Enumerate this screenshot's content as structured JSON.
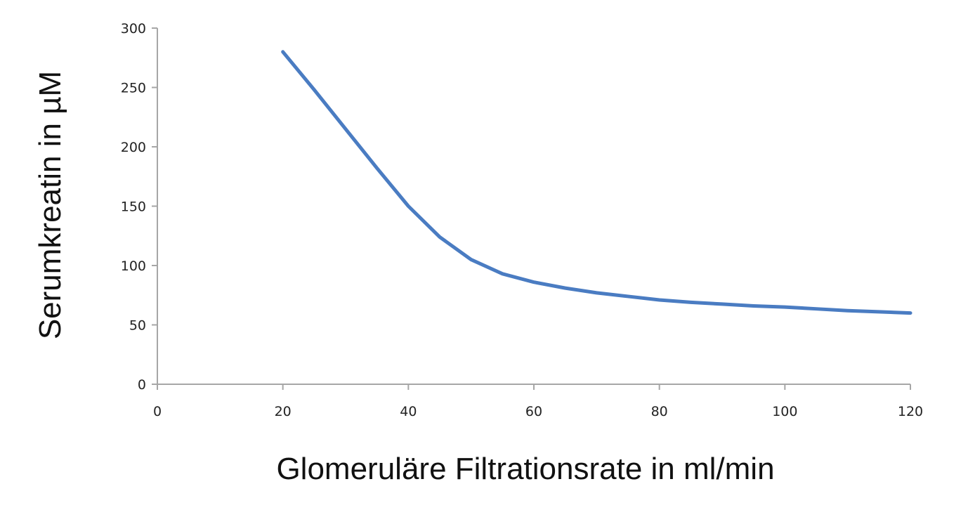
{
  "chart_data": {
    "type": "line",
    "x_label": "Glomeruläre Filtrationsrate in ml/min",
    "y_label": "Serumkreatin in µM",
    "xlim": [
      0,
      120
    ],
    "xticks": [
      0,
      20,
      40,
      60,
      80,
      100,
      120
    ],
    "ylim": [
      0,
      300
    ],
    "yticks": [
      0,
      50,
      100,
      150,
      200,
      250,
      300
    ],
    "grid": false,
    "series": [
      {
        "color": "#4a7cc2",
        "x": [
          20,
          25,
          30,
          35,
          40,
          45,
          50,
          55,
          60,
          65,
          70,
          75,
          80,
          85,
          90,
          95,
          100,
          105,
          110,
          115,
          120
        ],
        "values": [
          280,
          248,
          215,
          182,
          150,
          124,
          105,
          93,
          86,
          81,
          77,
          74,
          71,
          69,
          67.5,
          66,
          65,
          63.5,
          62,
          61,
          60
        ]
      }
    ]
  }
}
